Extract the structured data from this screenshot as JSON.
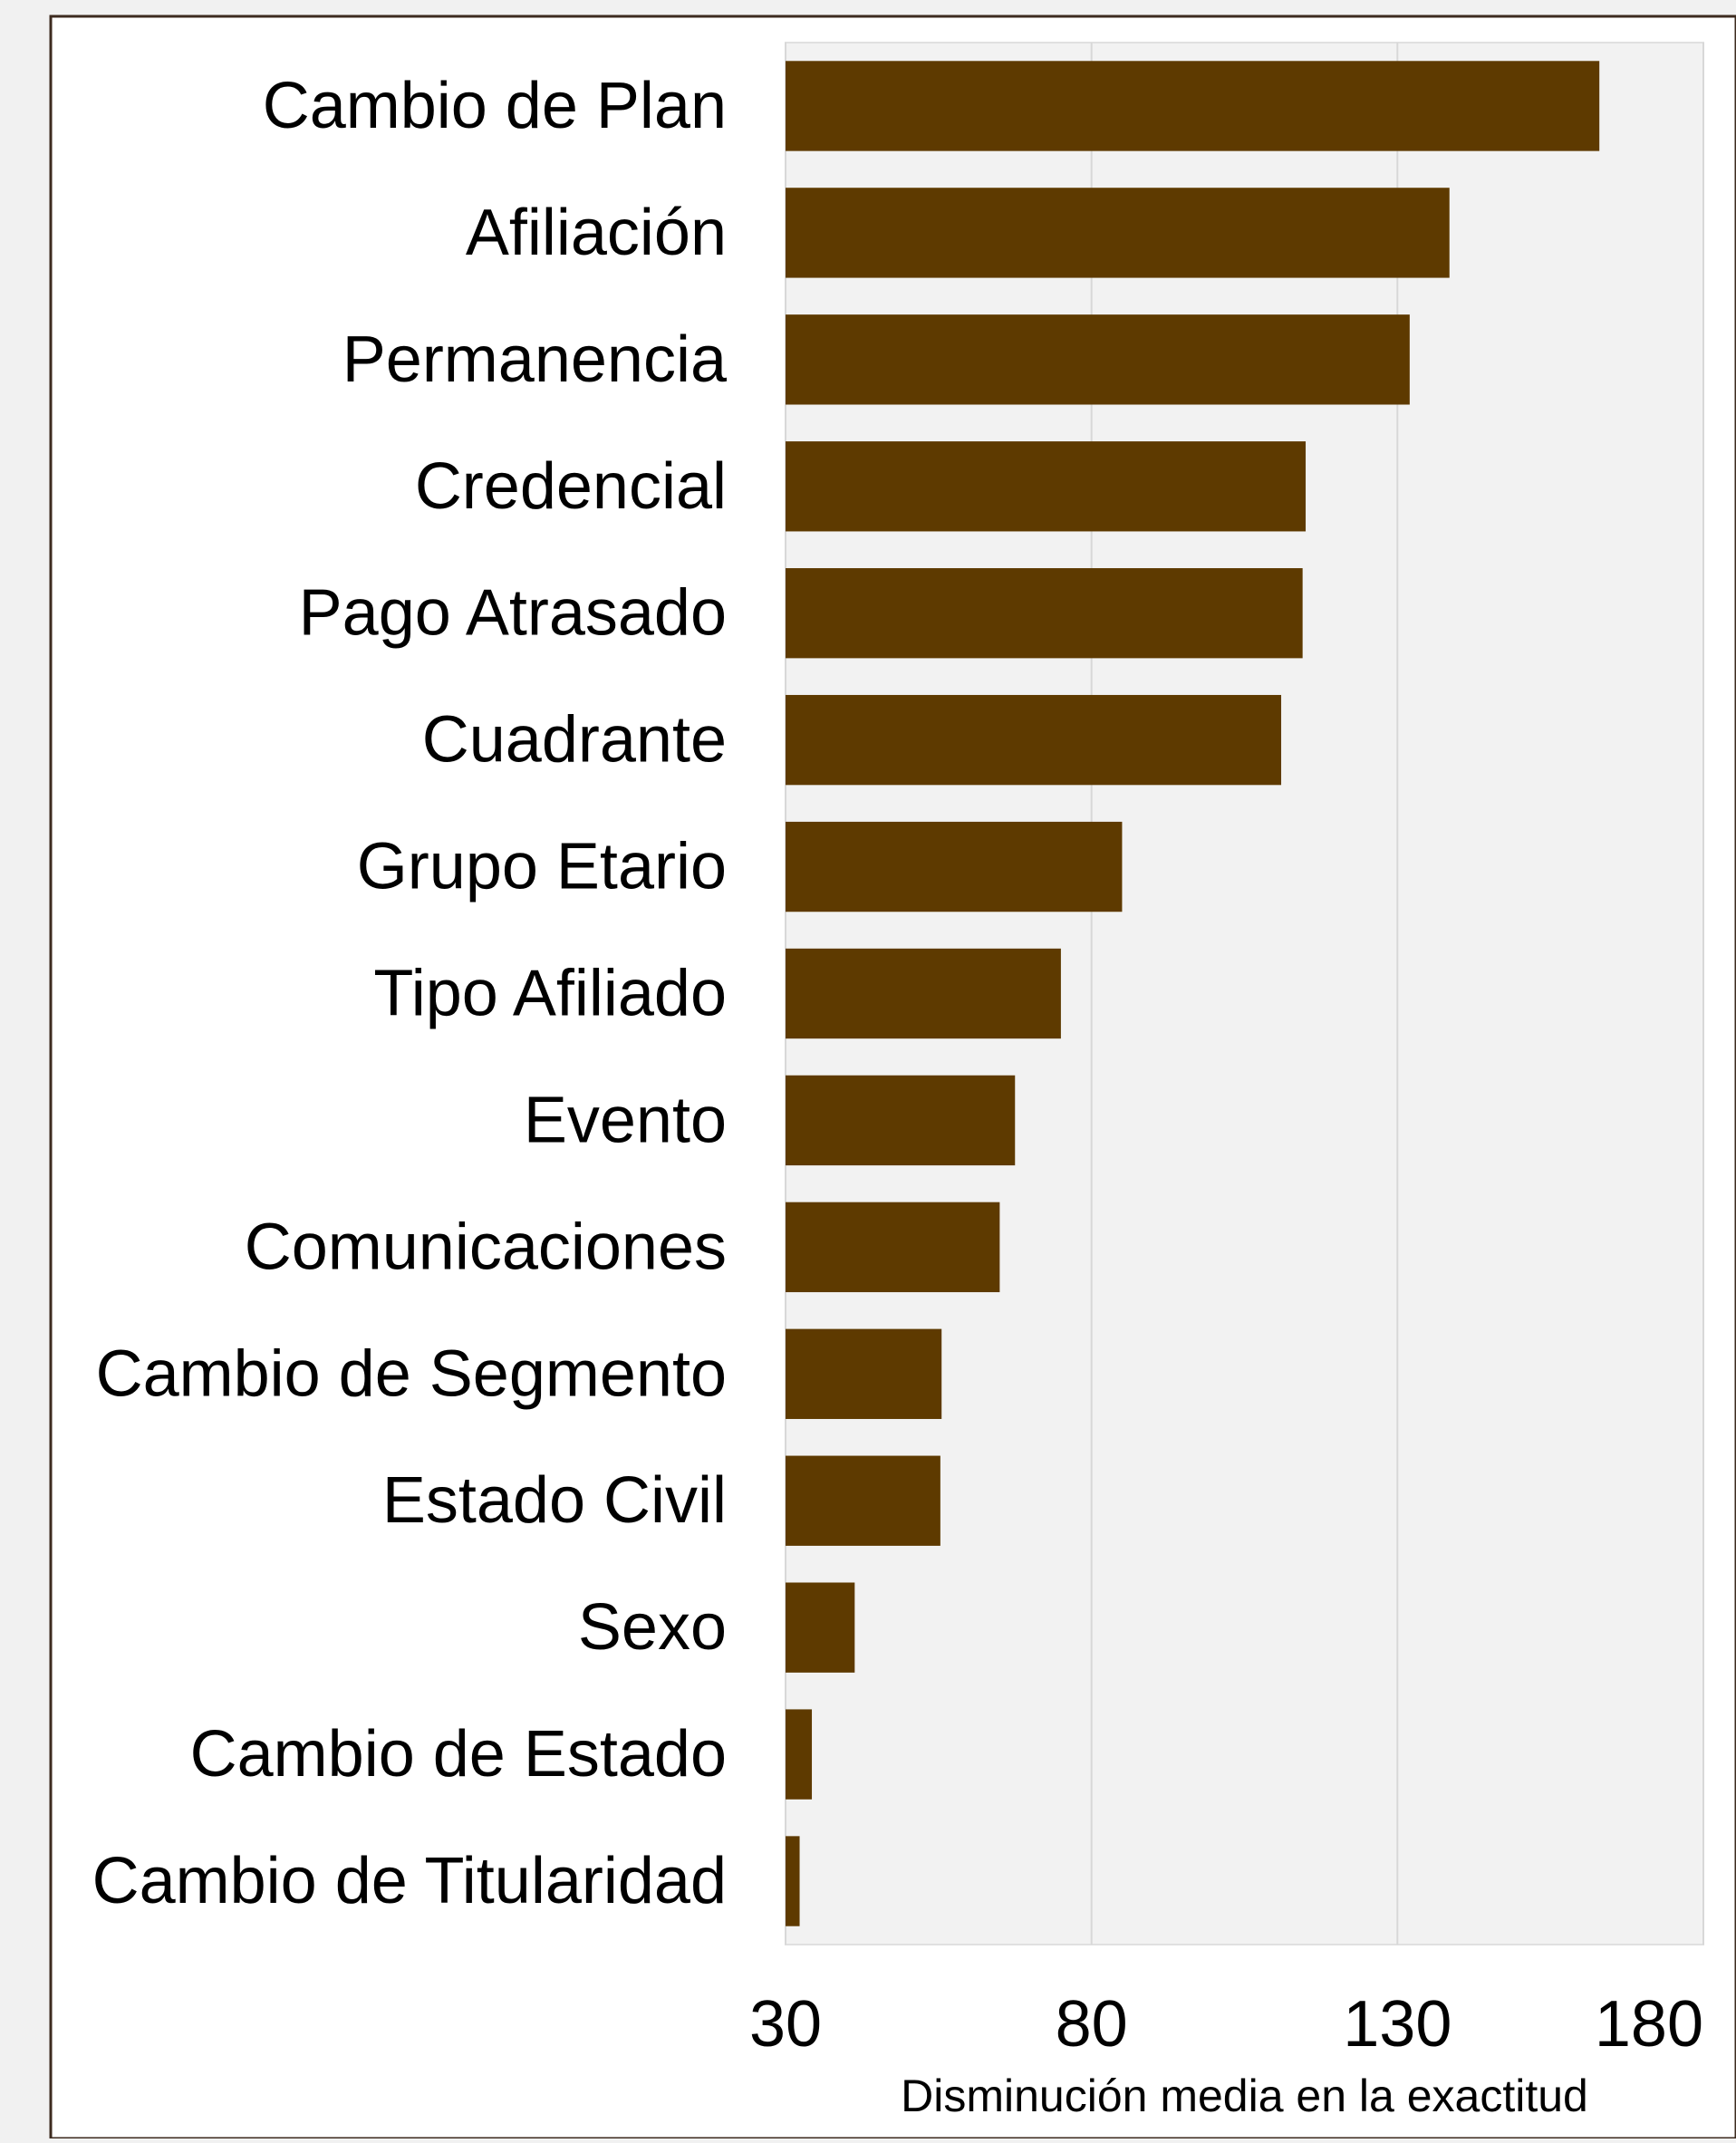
{
  "chart_data": {
    "type": "bar",
    "orientation": "horizontal",
    "title": "",
    "xlabel": "Disminución media en la exactitud",
    "ylabel": "",
    "categories": [
      "Cambio de Plan",
      "Afiliación",
      "Permanencia",
      "Credencial",
      "Pago Atrasado",
      "Cuadrante",
      "Grupo Etario",
      "Tipo Afiliado",
      "Evento",
      "Comunicaciones",
      "Cambio de Segmento",
      "Estado Civil",
      "Sexo",
      "Cambio de Estado",
      "Cambio de Titularidad"
    ],
    "values": [
      163,
      138.5,
      132,
      115,
      114.5,
      111,
      85,
      75,
      67.5,
      65,
      55.5,
      55.3,
      41.3,
      34.3,
      32.3
    ],
    "xlim": [
      30,
      180
    ],
    "xticks": [
      30,
      80,
      130,
      180
    ],
    "xtick_labels": [
      "30",
      "80",
      "130",
      "180"
    ],
    "grid": true,
    "colors": {
      "bar": "#5e3a00",
      "panel": "#f2f2f2",
      "grid": "#d8d8d8",
      "background": "#f1f1f1",
      "frame_border": "#3d2b1f"
    }
  }
}
